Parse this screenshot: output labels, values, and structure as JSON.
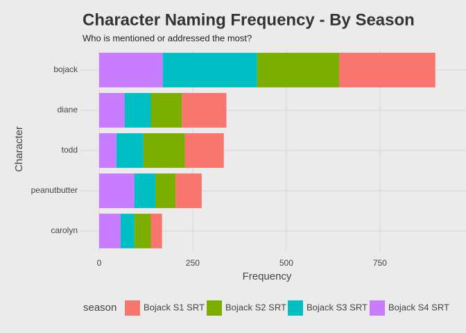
{
  "chart_data": {
    "type": "stacked-barh",
    "title": "Character Naming Frequency - By Season",
    "subtitle": "Who is mentioned or addressed the most?",
    "x_label": "Frequency",
    "y_label": "Character",
    "legend_title": "season",
    "categories": [
      "bojack",
      "diane",
      "todd",
      "peanutbutter",
      "carolyn"
    ],
    "series": [
      {
        "name": "Bojack S1 SRT",
        "color": "#f8766d",
        "values": [
          257,
          119,
          104,
          70,
          30
        ]
      },
      {
        "name": "Bojack S2 SRT",
        "color": "#7cae00",
        "values": [
          219,
          83,
          111,
          54,
          44
        ]
      },
      {
        "name": "Bojack S3 SRT",
        "color": "#00bfc4",
        "values": [
          252,
          70,
          72,
          56,
          37
        ]
      },
      {
        "name": "Bojack S4 SRT",
        "color": "#c77cff",
        "values": [
          170,
          68,
          46,
          94,
          57
        ]
      }
    ],
    "xlim": [
      -50,
      980
    ],
    "xticks": [
      0,
      250,
      500,
      750
    ],
    "grid": true
  }
}
